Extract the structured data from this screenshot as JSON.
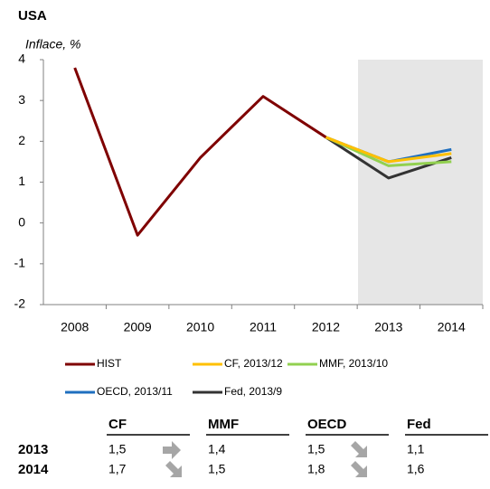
{
  "chart_data": {
    "type": "line",
    "title": "USA",
    "subtitle": "Inflace, %",
    "categories": [
      "2008",
      "2009",
      "2010",
      "2011",
      "2012",
      "2013",
      "2014"
    ],
    "series": [
      {
        "name": "HIST",
        "color": "#7f0000",
        "values": [
          3.8,
          -0.3,
          1.6,
          3.1,
          2.1,
          null,
          null
        ]
      },
      {
        "name": "CF, 2013/12",
        "color": "#ffc000",
        "values": [
          null,
          null,
          null,
          null,
          2.1,
          1.5,
          1.7
        ]
      },
      {
        "name": "MMF, 2013/10",
        "color": "#92d050",
        "values": [
          null,
          null,
          null,
          null,
          2.1,
          1.4,
          1.5
        ]
      },
      {
        "name": "OECD, 2013/11",
        "color": "#1f6fbf",
        "values": [
          null,
          null,
          null,
          null,
          2.1,
          1.5,
          1.8
        ]
      },
      {
        "name": "Fed, 2013/9",
        "color": "#333333",
        "values": [
          null,
          null,
          null,
          null,
          2.1,
          1.1,
          1.6
        ]
      }
    ],
    "ylim": [
      -2,
      4
    ],
    "yticks": [
      -2,
      -1,
      0,
      1,
      2,
      3,
      4
    ],
    "grid": false
  },
  "table": {
    "columns": [
      "CF",
      "MMF",
      "OECD",
      "Fed"
    ],
    "rows": [
      {
        "label": "2013",
        "values": [
          "1,5",
          "1,4",
          "1,5",
          "1,1"
        ]
      },
      {
        "label": "2014",
        "values": [
          "1,7",
          "1,5",
          "1,8",
          "1,6"
        ]
      }
    ]
  }
}
